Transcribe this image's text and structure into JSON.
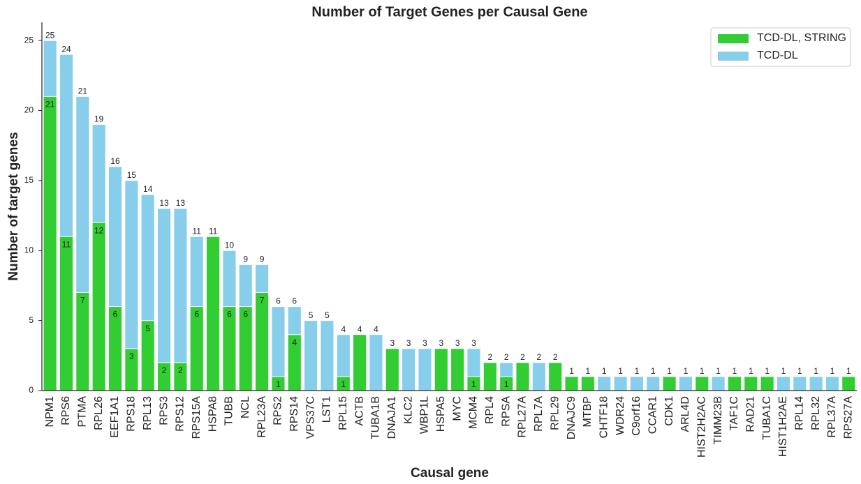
{
  "chart_data": {
    "type": "stacked_bar",
    "title": "Number of Target Genes per Causal Gene",
    "x_label": "Causal gene",
    "y_label": "Number of target genes",
    "categories": [
      "NPM1",
      "RPS6",
      "PTMA",
      "RPL26",
      "EEF1A1",
      "RPS18",
      "RPL13",
      "RPS3",
      "RPS12",
      "RPS15A",
      "HSPA8",
      "TUBB",
      "NCL",
      "RPL23A",
      "RPS2",
      "RPS14",
      "VPS37C",
      "LST1",
      "RPL15",
      "ACTB",
      "TUBA1B",
      "DNAJA1",
      "KLC2",
      "WBP1L",
      "HSPA5",
      "MYC",
      "MCM4",
      "RPL4",
      "RPSA",
      "RPL27A",
      "RPL7A",
      "RPL29",
      "DNAJC9",
      "MTBP",
      "CHTF18",
      "WDR24",
      "C9orf16",
      "CCAR1",
      "CDK1",
      "ARL4D",
      "HIST2H2AC",
      "TIMM23B",
      "TAF1C",
      "RAD21",
      "TUBA1C",
      "HIST1H2AE",
      "RPL14",
      "RPL32",
      "RPL37A",
      "RPS27A"
    ],
    "series": [
      {
        "name": "TCD-DL, STRING",
        "color": "#32cd32",
        "values": [
          21,
          11,
          7,
          12,
          6,
          3,
          5,
          2,
          2,
          6,
          11,
          6,
          6,
          7,
          1,
          4,
          0,
          0,
          1,
          4,
          0,
          3,
          0,
          0,
          3,
          3,
          1,
          2,
          1,
          2,
          0,
          2,
          1,
          1,
          0,
          0,
          0,
          0,
          1,
          0,
          1,
          0,
          1,
          1,
          1,
          0,
          0,
          0,
          0,
          1
        ]
      },
      {
        "name": "TCD-DL",
        "color": "#87ceeb",
        "values": [
          4,
          13,
          14,
          7,
          10,
          12,
          9,
          11,
          11,
          5,
          0,
          4,
          3,
          2,
          5,
          2,
          5,
          5,
          3,
          0,
          4,
          0,
          3,
          3,
          0,
          0,
          2,
          0,
          1,
          0,
          2,
          0,
          0,
          0,
          1,
          1,
          1,
          1,
          0,
          1,
          0,
          1,
          0,
          0,
          0,
          1,
          1,
          1,
          1,
          0
        ]
      }
    ],
    "totals": [
      25,
      24,
      21,
      19,
      16,
      15,
      14,
      13,
      13,
      11,
      11,
      10,
      9,
      9,
      6,
      6,
      5,
      5,
      4,
      4,
      4,
      3,
      3,
      3,
      3,
      3,
      3,
      2,
      2,
      2,
      2,
      2,
      1,
      1,
      1,
      1,
      1,
      1,
      1,
      1,
      1,
      1,
      1,
      1,
      1,
      1,
      1,
      1,
      1,
      1
    ],
    "ylim": [
      0,
      26.3
    ],
    "yticks": [
      0,
      5,
      10,
      15,
      20,
      25
    ],
    "legend": "upper right"
  }
}
